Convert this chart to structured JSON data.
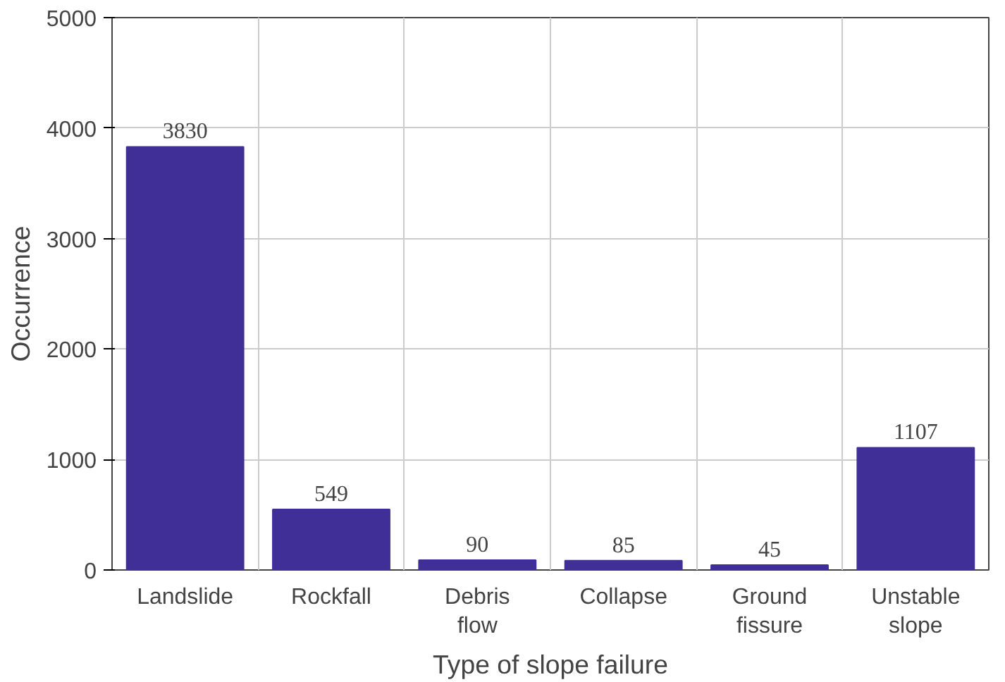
{
  "chart_data": {
    "type": "bar",
    "xlabel": "Type of slope failure",
    "ylabel": "Occurrence",
    "categories": [
      "Landslide",
      "Rockfall",
      "Debris flow",
      "Collapse",
      "Ground fissure",
      "Unstable slope"
    ],
    "values": [
      3830,
      549,
      90,
      85,
      45,
      1107
    ],
    "color": "#3f2f96",
    "ylim": [
      0,
      5000
    ],
    "yticks": [
      0,
      1000,
      2000,
      3000,
      4000,
      5000
    ],
    "grid": true,
    "data_labels": true
  }
}
